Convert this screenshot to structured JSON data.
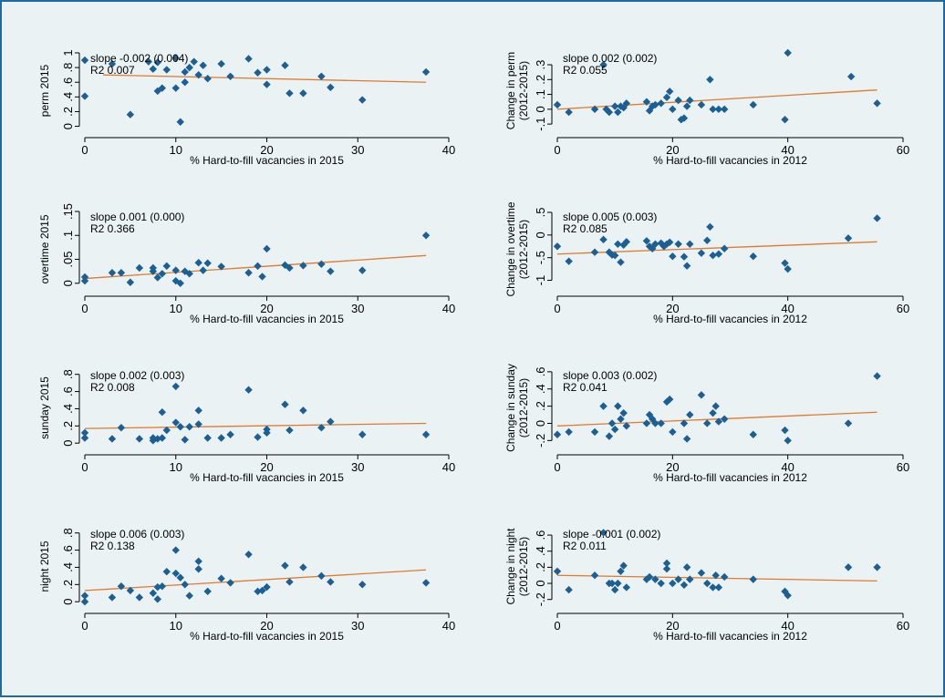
{
  "colors": {
    "marker": "#1a5f96",
    "fit": "#e07a2e",
    "background": "#eaf2f3",
    "border": "#1f6aa3"
  },
  "chart_data": [
    {
      "type": "scatter",
      "title": "",
      "xlabel": "% Hard-to-fill vacancies in 2015",
      "ylabel": [
        "perm 2015"
      ],
      "xlim": [
        0,
        40
      ],
      "xticks": [
        0,
        10,
        20,
        30,
        40
      ],
      "ylim": [
        -0.03,
        1.0
      ],
      "yticks": [
        0,
        0.2,
        0.4,
        0.6,
        0.8,
        1.0
      ],
      "ytick_labels": [
        "0",
        ".2",
        ".4",
        ".6",
        ".8",
        "1"
      ],
      "annotation": [
        "slope -0.002 (0.004)",
        "R2 0.007"
      ],
      "fit": {
        "x": [
          2,
          37.5
        ],
        "y": [
          0.7,
          0.6
        ]
      },
      "x": [
        0,
        0,
        3,
        5,
        7,
        7.5,
        8,
        8,
        8.5,
        9,
        10,
        10,
        10.5,
        11,
        11,
        11.5,
        12,
        12.5,
        13,
        13.5,
        15,
        16,
        18,
        19,
        20,
        20,
        22,
        22.5,
        24,
        26,
        27,
        30.5,
        37.5
      ],
      "y": [
        0.9,
        0.41,
        0.85,
        0.16,
        0.88,
        0.78,
        0.48,
        0.87,
        0.52,
        0.77,
        0.93,
        0.52,
        0.06,
        0.6,
        0.74,
        0.8,
        0.88,
        0.7,
        0.83,
        0.65,
        0.85,
        0.68,
        0.92,
        0.73,
        0.57,
        0.77,
        0.83,
        0.45,
        0.45,
        0.68,
        0.53,
        0.36,
        0.74
      ]
    },
    {
      "type": "scatter",
      "title": "",
      "xlabel": "% Hard-to-fill vacancies in 2012",
      "ylabel": [
        "Change in perm",
        "(2012-2015)"
      ],
      "xlim": [
        0,
        60
      ],
      "xticks": [
        0,
        20,
        40,
        60
      ],
      "ylim": [
        -0.13,
        0.38
      ],
      "yticks": [
        -0.1,
        0,
        0.1,
        0.2,
        0.3
      ],
      "ytick_labels": [
        "-.1",
        "0",
        ".1",
        ".2",
        ".3"
      ],
      "annotation": [
        "slope 0.002 (0.002)",
        "R2 0.055"
      ],
      "fit": {
        "x": [
          0,
          55.5
        ],
        "y": [
          0.0,
          0.13
        ]
      },
      "x": [
        0,
        2,
        6.5,
        8,
        8.5,
        9,
        10,
        10.5,
        11,
        11.5,
        12,
        15.5,
        16,
        16.5,
        17,
        18,
        19,
        19.5,
        20,
        21,
        21.5,
        22,
        22.5,
        23,
        25,
        26.5,
        27,
        28,
        29,
        34,
        39.5,
        40,
        51,
        55.5
      ],
      "y": [
        0.03,
        -0.02,
        0.0,
        0.3,
        0.0,
        -0.02,
        0.02,
        -0.02,
        0.02,
        0.01,
        0.04,
        0.05,
        -0.01,
        0.02,
        0.03,
        0.04,
        0.08,
        0.12,
        0.0,
        0.06,
        -0.07,
        -0.06,
        0.02,
        0.06,
        0.03,
        0.2,
        0.0,
        0.0,
        0.0,
        0.03,
        -0.07,
        0.38,
        0.22,
        0.04
      ]
    },
    {
      "type": "scatter",
      "title": "",
      "xlabel": "% Hard-to-fill vacancies in 2015",
      "ylabel": [
        "overtime 2015"
      ],
      "xlim": [
        0,
        40
      ],
      "xticks": [
        0,
        10,
        20,
        30,
        40
      ],
      "ylim": [
        -0.008,
        0.15
      ],
      "yticks": [
        0,
        0.05,
        0.1,
        0.15
      ],
      "ytick_labels": [
        "0",
        ".05",
        ".1",
        ".15"
      ],
      "annotation": [
        "slope 0.001 (0.000)",
        "R2 0.366"
      ],
      "fit": {
        "x": [
          0,
          37.5
        ],
        "y": [
          0.01,
          0.058
        ]
      },
      "x": [
        0,
        0,
        3,
        4,
        5,
        6,
        7.5,
        7.5,
        8,
        8.5,
        9,
        10,
        10,
        10.5,
        11,
        11.5,
        12.5,
        13,
        13.5,
        15,
        18,
        19,
        19.5,
        20,
        22,
        22.5,
        24,
        26,
        27,
        30.5,
        37.5
      ],
      "y": [
        0.005,
        0.013,
        0.022,
        0.022,
        0.002,
        0.032,
        0.032,
        0.025,
        0.012,
        0.02,
        0.036,
        0.027,
        0.005,
        0.0,
        0.025,
        0.02,
        0.043,
        0.027,
        0.042,
        0.035,
        0.022,
        0.036,
        0.014,
        0.072,
        0.038,
        0.032,
        0.037,
        0.04,
        0.025,
        0.027,
        0.1
      ]
    },
    {
      "type": "scatter",
      "title": "",
      "xlabel": "% Hard-to-fill vacancies in 2012",
      "ylabel": [
        "Change in overtime",
        "(2012-2015)"
      ],
      "xlim": [
        0,
        60
      ],
      "xticks": [
        0,
        20,
        40,
        60
      ],
      "ylim": [
        -1.15,
        0.52
      ],
      "yticks": [
        -1,
        -0.5,
        0,
        0.5
      ],
      "ytick_labels": [
        "-1",
        "-.5",
        "0",
        ".5"
      ],
      "annotation": [
        "slope 0.005 (0.003)",
        "R2 0.085"
      ],
      "fit": {
        "x": [
          0,
          55.5
        ],
        "y": [
          -0.42,
          -0.15
        ]
      },
      "x": [
        0,
        2,
        6.5,
        8,
        9,
        9.5,
        10,
        10.5,
        11,
        11.5,
        12,
        15.5,
        16,
        16.5,
        17,
        18,
        18.5,
        19,
        19.5,
        20,
        21,
        22,
        22.5,
        23,
        25,
        26,
        26.5,
        27,
        28,
        29,
        34,
        39.5,
        40,
        50.5,
        55.5
      ],
      "y": [
        -0.25,
        -0.58,
        -0.38,
        -0.1,
        -0.38,
        -0.44,
        -0.45,
        -0.2,
        -0.6,
        -0.22,
        -0.15,
        -0.13,
        -0.25,
        -0.3,
        -0.2,
        -0.18,
        -0.25,
        -0.2,
        -0.16,
        -0.47,
        -0.2,
        -0.48,
        -0.68,
        -0.2,
        -0.4,
        -0.12,
        0.18,
        -0.45,
        -0.42,
        -0.3,
        -0.47,
        -0.62,
        -0.75,
        -0.07,
        0.37
      ]
    },
    {
      "type": "scatter",
      "title": "",
      "xlabel": "% Hard-to-fill vacancies in 2015",
      "ylabel": [
        "sunday 2015"
      ],
      "xlim": [
        0,
        40
      ],
      "xticks": [
        0,
        10,
        20,
        30,
        40
      ],
      "ylim": [
        -0.03,
        0.85
      ],
      "yticks": [
        0,
        0.2,
        0.4,
        0.6,
        0.8
      ],
      "ytick_labels": [
        "0",
        ".2",
        ".4",
        ".6",
        ".8"
      ],
      "annotation": [
        "slope 0.002 (0.003)",
        "R2 0.008"
      ],
      "fit": {
        "x": [
          0,
          37.5
        ],
        "y": [
          0.17,
          0.23
        ]
      },
      "x": [
        0,
        0,
        3,
        4,
        6,
        7.5,
        7.5,
        8,
        8.5,
        8.5,
        9,
        10,
        10,
        10.5,
        11,
        11.5,
        12.5,
        12.5,
        13.5,
        15,
        16,
        18,
        19,
        20,
        20,
        22,
        22.5,
        24,
        26,
        27,
        30.5,
        37.5
      ],
      "y": [
        0.06,
        0.12,
        0.05,
        0.18,
        0.05,
        0.03,
        0.06,
        0.05,
        0.36,
        0.06,
        0.15,
        0.24,
        0.66,
        0.19,
        0.04,
        0.19,
        0.22,
        0.38,
        0.06,
        0.06,
        0.1,
        0.62,
        0.07,
        0.16,
        0.12,
        0.45,
        0.15,
        0.38,
        0.18,
        0.25,
        0.1,
        0.1
      ]
    },
    {
      "type": "scatter",
      "title": "",
      "xlabel": "% Hard-to-fill vacancies in 2012",
      "ylabel": [
        "Change in sunday",
        "(2012-2015)"
      ],
      "xlim": [
        0,
        60
      ],
      "xticks": [
        0,
        20,
        40,
        60
      ],
      "ylim": [
        -0.26,
        0.62
      ],
      "yticks": [
        -0.2,
        0,
        0.2,
        0.4,
        0.6
      ],
      "ytick_labels": [
        "-.2",
        "0",
        ".2",
        ".4",
        ".6"
      ],
      "annotation": [
        "slope 0.003 (0.002)",
        "R2 0.041"
      ],
      "fit": {
        "x": [
          0,
          55.5
        ],
        "y": [
          -0.03,
          0.13
        ]
      },
      "x": [
        0,
        2,
        6.5,
        8,
        9,
        9.5,
        10,
        10.5,
        11,
        11.5,
        12,
        15.5,
        16,
        16.5,
        17,
        18,
        19,
        19.5,
        20,
        22,
        22.5,
        23,
        25,
        26,
        27,
        27.5,
        28,
        29,
        34,
        39.5,
        40,
        50.5,
        55.5
      ],
      "y": [
        -0.13,
        -0.1,
        -0.1,
        0.2,
        -0.15,
        0.0,
        -0.07,
        0.2,
        0.05,
        0.12,
        -0.03,
        0.0,
        0.1,
        0.05,
        0.0,
        0.0,
        0.25,
        0.28,
        -0.1,
        0.0,
        -0.18,
        0.1,
        0.33,
        0.0,
        0.12,
        0.2,
        0.02,
        0.05,
        -0.13,
        -0.08,
        -0.2,
        0.0,
        0.55
      ]
    },
    {
      "type": "scatter",
      "title": "",
      "xlabel": "% Hard-to-fill vacancies in 2015",
      "ylabel": [
        "night 2015"
      ],
      "xlim": [
        0,
        40
      ],
      "xticks": [
        0,
        10,
        20,
        30,
        40
      ],
      "ylim": [
        -0.03,
        0.85
      ],
      "yticks": [
        0,
        0.2,
        0.4,
        0.6,
        0.8
      ],
      "ytick_labels": [
        "0",
        ".2",
        ".4",
        ".6",
        ".8"
      ],
      "annotation": [
        "slope 0.006 (0.003)",
        "R2 0.138"
      ],
      "fit": {
        "x": [
          0,
          37.5
        ],
        "y": [
          0.13,
          0.37
        ]
      },
      "x": [
        0,
        0,
        3,
        4,
        5,
        6,
        7.5,
        8,
        8,
        8.5,
        9,
        10,
        10,
        10.5,
        11,
        11.5,
        12.5,
        12.5,
        13.5,
        15,
        16,
        18,
        19,
        19.5,
        20,
        22,
        22.5,
        24,
        26,
        27,
        30.5,
        37.5
      ],
      "y": [
        0.0,
        0.07,
        0.05,
        0.18,
        0.13,
        0.05,
        0.1,
        0.03,
        0.17,
        0.18,
        0.35,
        0.33,
        0.6,
        0.28,
        0.2,
        0.07,
        0.38,
        0.47,
        0.12,
        0.27,
        0.22,
        0.55,
        0.12,
        0.13,
        0.17,
        0.42,
        0.23,
        0.4,
        0.3,
        0.23,
        0.2,
        0.22
      ]
    },
    {
      "type": "scatter",
      "title": "",
      "xlabel": "% Hard-to-fill vacancies in 2012",
      "ylabel": [
        "Change in night",
        "(2012-2015)"
      ],
      "xlim": [
        0,
        60
      ],
      "xticks": [
        0,
        20,
        40,
        60
      ],
      "ylim": [
        -0.26,
        0.68
      ],
      "yticks": [
        -0.2,
        0,
        0.2,
        0.4,
        0.6
      ],
      "ytick_labels": [
        "-.2",
        "0",
        ".2",
        ".4",
        ".6"
      ],
      "annotation": [
        "slope -0.001 (0.002)",
        "R2 0.011"
      ],
      "fit": {
        "x": [
          0,
          55.5
        ],
        "y": [
          0.1,
          0.03
        ]
      },
      "x": [
        0,
        2,
        6.5,
        8,
        9,
        9.5,
        10,
        10.5,
        11,
        11.5,
        12,
        15.5,
        16,
        17,
        18,
        19,
        19,
        20,
        21,
        22,
        22.5,
        23,
        25,
        26,
        27,
        27.5,
        28,
        29,
        34,
        39.5,
        40,
        50.5,
        55.5
      ],
      "y": [
        0.15,
        -0.08,
        0.1,
        0.63,
        0.0,
        0.0,
        -0.08,
        0.0,
        0.15,
        0.22,
        -0.05,
        0.05,
        0.08,
        0.05,
        0.0,
        0.18,
        0.25,
        0.0,
        0.05,
        -0.02,
        0.2,
        0.05,
        0.13,
        0.0,
        -0.05,
        0.1,
        -0.05,
        0.08,
        0.05,
        -0.1,
        -0.15,
        0.2,
        0.2
      ]
    }
  ]
}
